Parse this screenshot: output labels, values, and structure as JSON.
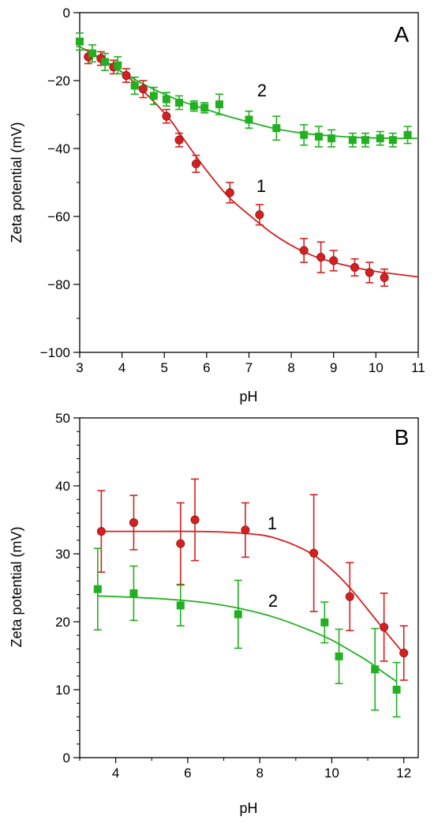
{
  "chart_data": [
    {
      "panel": "A",
      "type": "scatter",
      "xlabel": "pH",
      "ylabel": "Zeta potential (mV)",
      "xlim": [
        3,
        11
      ],
      "ylim": [
        -100,
        0
      ],
      "xticks": [
        3,
        4,
        5,
        6,
        7,
        8,
        9,
        10,
        11
      ],
      "yticks": [
        0,
        -20,
        -40,
        -60,
        -80,
        -100
      ],
      "grid": false,
      "series": [
        {
          "name": "1",
          "color": "#d42020",
          "marker": "circle",
          "x": [
            3.2,
            3.5,
            3.8,
            4.1,
            4.5,
            5.05,
            5.35,
            5.75,
            6.55,
            7.25,
            8.3,
            8.7,
            9.0,
            9.5,
            9.85,
            10.2
          ],
          "y": [
            -13,
            -13.5,
            -16,
            -18.5,
            -22.5,
            -30.5,
            -37.5,
            -44.5,
            -53,
            -59.5,
            -70,
            -72,
            -73,
            -75,
            -76.5,
            -78
          ],
          "err": [
            2.0,
            2.0,
            2.0,
            2.0,
            2.5,
            2.0,
            2.0,
            2.5,
            3.0,
            3.0,
            3.5,
            4.5,
            3.0,
            2.5,
            3.0,
            2.5
          ],
          "fit": [
            [
              3.0,
              -10
            ],
            [
              4.0,
              -17.5
            ],
            [
              5.0,
              -29.5
            ],
            [
              5.5,
              -38
            ],
            [
              6.0,
              -46.5
            ],
            [
              6.5,
              -54
            ],
            [
              7.0,
              -59.5
            ],
            [
              7.5,
              -64.5
            ],
            [
              8.0,
              -68.5
            ],
            [
              8.5,
              -71.5
            ],
            [
              9.0,
              -73.5
            ],
            [
              9.5,
              -75
            ],
            [
              10.0,
              -76.2
            ],
            [
              10.5,
              -77
            ],
            [
              11.0,
              -77.8
            ]
          ]
        },
        {
          "name": "2",
          "color": "#22b022",
          "marker": "square",
          "x": [
            3.0,
            3.3,
            3.6,
            3.9,
            4.3,
            4.75,
            5.05,
            5.35,
            5.7,
            5.95,
            6.3,
            7.0,
            7.65,
            8.3,
            8.65,
            8.95,
            9.45,
            9.75,
            10.1,
            10.4,
            10.75
          ],
          "y": [
            -8.5,
            -12,
            -14.5,
            -15.5,
            -21.5,
            -24.5,
            -25.5,
            -26.5,
            -27.5,
            -28,
            -27,
            -31.5,
            -34,
            -36,
            -36.5,
            -37,
            -37.5,
            -37.5,
            -37,
            -37.5,
            -36
          ],
          "err": [
            2.5,
            2.5,
            2.5,
            2.5,
            2.5,
            2.5,
            2.0,
            2.0,
            1.5,
            1.5,
            3.0,
            2.5,
            3.5,
            3.0,
            3.0,
            2.5,
            2.0,
            2.0,
            2.0,
            2.0,
            2.5
          ],
          "fit": [
            [
              3.0,
              -10
            ],
            [
              3.5,
              -13.5
            ],
            [
              4.0,
              -17.5
            ],
            [
              4.5,
              -21
            ],
            [
              5.0,
              -24
            ],
            [
              5.5,
              -26.5
            ],
            [
              6.0,
              -28.5
            ],
            [
              6.5,
              -30.5
            ],
            [
              7.0,
              -32.2
            ],
            [
              7.5,
              -33.8
            ],
            [
              8.0,
              -35
            ],
            [
              8.5,
              -35.8
            ],
            [
              9.0,
              -36.3
            ],
            [
              9.5,
              -36.7
            ],
            [
              10.0,
              -36.9
            ],
            [
              10.5,
              -37
            ],
            [
              11.0,
              -37
            ]
          ]
        }
      ]
    },
    {
      "panel": "B",
      "type": "scatter",
      "xlabel": "pH",
      "ylabel": "Zeta potential (mV)",
      "xlim": [
        3,
        12.4
      ],
      "ylim": [
        0,
        50
      ],
      "xticks": [
        4,
        6,
        8,
        10,
        12
      ],
      "yticks": [
        0,
        10,
        20,
        30,
        40,
        50
      ],
      "grid": false,
      "series": [
        {
          "name": "1",
          "color": "#d42020",
          "marker": "circle",
          "x": [
            3.6,
            4.5,
            5.8,
            6.2,
            7.6,
            9.5,
            10.5,
            11.45,
            12.0
          ],
          "y": [
            33.3,
            34.6,
            31.5,
            35,
            33.5,
            30.1,
            23.7,
            19.2,
            15.4
          ],
          "err": [
            6.0,
            4.0,
            6.0,
            6.0,
            4.0,
            8.6,
            5.0,
            5.0,
            4.0
          ],
          "fit": [
            [
              3.5,
              33.3
            ],
            [
              5.0,
              33.3
            ],
            [
              6.0,
              33.3
            ],
            [
              7.0,
              33.2
            ],
            [
              8.0,
              32.8
            ],
            [
              8.5,
              32.2
            ],
            [
              9.0,
              31.2
            ],
            [
              9.5,
              29.8
            ],
            [
              10.0,
              27.7
            ],
            [
              10.5,
              25.0
            ],
            [
              11.0,
              21.8
            ],
            [
              11.5,
              18.5
            ],
            [
              12.0,
              15.3
            ]
          ]
        },
        {
          "name": "2",
          "color": "#22b022",
          "marker": "square",
          "x": [
            3.5,
            4.5,
            5.8,
            7.4,
            9.8,
            10.2,
            11.2,
            11.8
          ],
          "y": [
            24.8,
            24.2,
            22.4,
            21.1,
            19.9,
            14.9,
            13.0,
            10.0
          ],
          "err": [
            6.0,
            4.0,
            3.0,
            5.0,
            3.0,
            4.0,
            6.0,
            4.0
          ],
          "fit": [
            [
              3.5,
              23.8
            ],
            [
              4.5,
              23.6
            ],
            [
              5.5,
              23.3
            ],
            [
              6.5,
              22.8
            ],
            [
              7.5,
              21.9
            ],
            [
              8.5,
              20.5
            ],
            [
              9.5,
              18.5
            ],
            [
              10.0,
              17.3
            ],
            [
              10.5,
              15.8
            ],
            [
              11.0,
              14.2
            ],
            [
              11.5,
              12.3
            ],
            [
              11.8,
              11.2
            ]
          ]
        }
      ]
    }
  ]
}
